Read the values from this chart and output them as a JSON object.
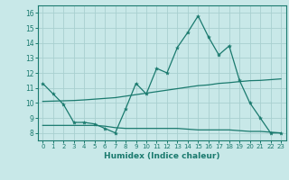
{
  "xlabel": "Humidex (Indice chaleur)",
  "bg_color": "#c8e8e8",
  "line_color": "#1a7a6e",
  "grid_color": "#a8d0d0",
  "xlim": [
    -0.5,
    23.5
  ],
  "ylim": [
    7.5,
    16.5
  ],
  "xticks": [
    0,
    1,
    2,
    3,
    4,
    5,
    6,
    7,
    8,
    9,
    10,
    11,
    12,
    13,
    14,
    15,
    16,
    17,
    18,
    19,
    20,
    21,
    22,
    23
  ],
  "yticks": [
    8,
    9,
    10,
    11,
    12,
    13,
    14,
    15,
    16
  ],
  "line1_x": [
    0,
    1,
    2,
    3,
    4,
    5,
    6,
    7,
    8,
    9,
    10,
    11,
    12,
    13,
    14,
    15,
    16,
    17,
    18,
    19,
    20,
    21,
    22,
    23
  ],
  "line1_y": [
    11.3,
    10.6,
    9.9,
    8.7,
    8.7,
    8.6,
    8.3,
    8.0,
    9.6,
    11.3,
    10.6,
    12.3,
    12.0,
    13.7,
    14.7,
    15.8,
    14.4,
    13.2,
    13.8,
    11.5,
    10.0,
    9.0,
    8.0,
    8.0
  ],
  "line2_x": [
    0,
    1,
    2,
    3,
    4,
    5,
    6,
    7,
    8,
    9,
    10,
    11,
    12,
    13,
    14,
    15,
    16,
    17,
    18,
    19,
    20,
    21,
    22,
    23
  ],
  "line2_y": [
    10.1,
    10.12,
    10.14,
    10.16,
    10.2,
    10.25,
    10.3,
    10.35,
    10.45,
    10.55,
    10.65,
    10.75,
    10.85,
    10.95,
    11.05,
    11.15,
    11.2,
    11.3,
    11.35,
    11.42,
    11.48,
    11.5,
    11.55,
    11.6
  ],
  "line3_x": [
    0,
    1,
    2,
    3,
    4,
    5,
    6,
    7,
    8,
    9,
    10,
    11,
    12,
    13,
    14,
    15,
    16,
    17,
    18,
    19,
    20,
    21,
    22,
    23
  ],
  "line3_y": [
    8.5,
    8.5,
    8.5,
    8.5,
    8.5,
    8.5,
    8.45,
    8.35,
    8.3,
    8.3,
    8.3,
    8.3,
    8.3,
    8.3,
    8.25,
    8.2,
    8.2,
    8.2,
    8.2,
    8.15,
    8.1,
    8.1,
    8.05,
    8.0
  ]
}
